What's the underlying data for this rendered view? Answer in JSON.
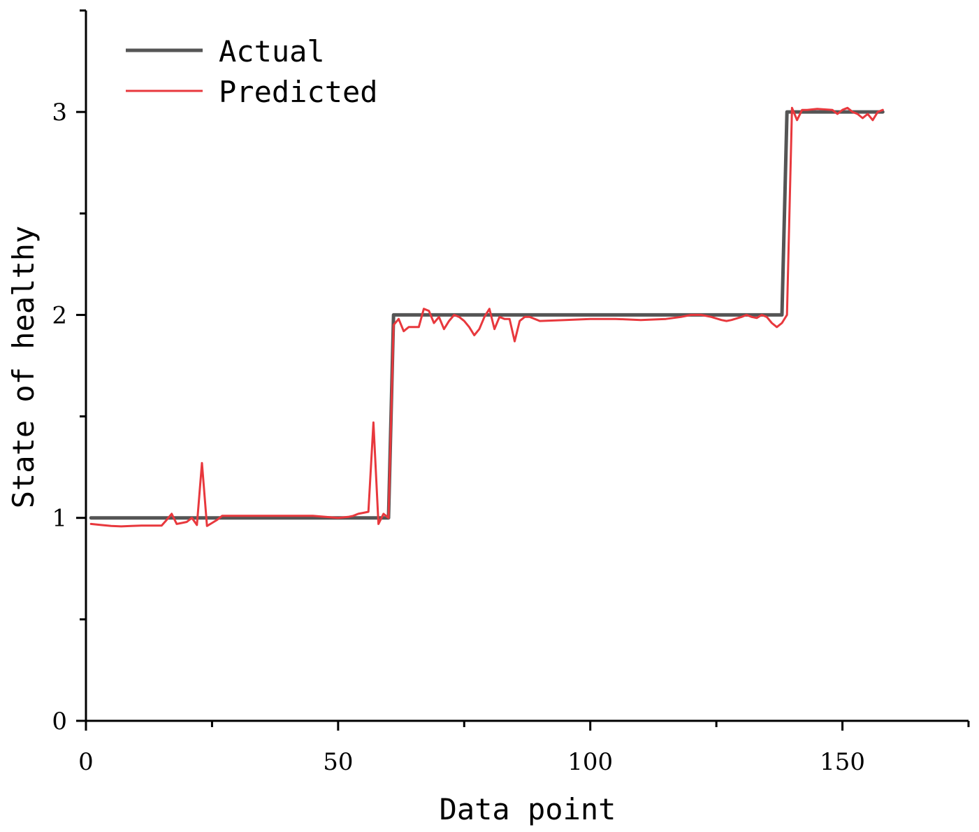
{
  "chart_data": {
    "type": "line",
    "title": "",
    "xlabel": "Data point",
    "ylabel": "State of healthy",
    "xlim": [
      0,
      175
    ],
    "ylim": [
      0,
      3.5
    ],
    "x_ticks": [
      0,
      50,
      100,
      150
    ],
    "x_tick_labels": [
      "0",
      "50",
      "100",
      "150"
    ],
    "y_ticks": [
      0,
      1,
      2,
      3
    ],
    "y_tick_labels": [
      "0",
      "1",
      "2",
      "3"
    ],
    "grid": false,
    "legend_position": "top-left",
    "series": [
      {
        "name": "Actual",
        "color": "#555555",
        "points": [
          [
            1,
            1
          ],
          [
            60,
            1
          ],
          [
            61,
            2
          ],
          [
            138,
            2
          ],
          [
            139,
            3
          ],
          [
            158,
            3
          ]
        ]
      },
      {
        "name": "Predicted",
        "color": "#e8383d",
        "points": [
          [
            1,
            0.97
          ],
          [
            3,
            0.965
          ],
          [
            5,
            0.96
          ],
          [
            7,
            0.958
          ],
          [
            9,
            0.96
          ],
          [
            11,
            0.962
          ],
          [
            13,
            0.962
          ],
          [
            15,
            0.962
          ],
          [
            16,
            0.99
          ],
          [
            17,
            1.02
          ],
          [
            18,
            0.97
          ],
          [
            19,
            0.975
          ],
          [
            20,
            0.98
          ],
          [
            21,
            1.0
          ],
          [
            22,
            0.965
          ],
          [
            23,
            1.27
          ],
          [
            24,
            0.96
          ],
          [
            25,
            0.975
          ],
          [
            26,
            0.99
          ],
          [
            27,
            1.01
          ],
          [
            30,
            1.01
          ],
          [
            35,
            1.01
          ],
          [
            40,
            1.01
          ],
          [
            45,
            1.01
          ],
          [
            50,
            1.0
          ],
          [
            52,
            1.005
          ],
          [
            53,
            1.01
          ],
          [
            54,
            1.02
          ],
          [
            55,
            1.025
          ],
          [
            56,
            1.03
          ],
          [
            57,
            1.47
          ],
          [
            58,
            0.97
          ],
          [
            59,
            1.02
          ],
          [
            60,
            1.0
          ],
          [
            61,
            1.95
          ],
          [
            62,
            1.98
          ],
          [
            63,
            1.92
          ],
          [
            64,
            1.94
          ],
          [
            65,
            1.94
          ],
          [
            66,
            1.94
          ],
          [
            67,
            2.03
          ],
          [
            68,
            2.02
          ],
          [
            69,
            1.96
          ],
          [
            70,
            1.99
          ],
          [
            71,
            1.93
          ],
          [
            72,
            1.97
          ],
          [
            73,
            2.0
          ],
          [
            74,
            1.99
          ],
          [
            75,
            1.97
          ],
          [
            76,
            1.94
          ],
          [
            77,
            1.9
          ],
          [
            78,
            1.93
          ],
          [
            79,
            1.99
          ],
          [
            80,
            2.03
          ],
          [
            81,
            1.93
          ],
          [
            82,
            1.99
          ],
          [
            83,
            1.98
          ],
          [
            84,
            1.98
          ],
          [
            85,
            1.87
          ],
          [
            86,
            1.97
          ],
          [
            87,
            1.99
          ],
          [
            88,
            1.99
          ],
          [
            90,
            1.97
          ],
          [
            95,
            1.975
          ],
          [
            100,
            1.98
          ],
          [
            105,
            1.98
          ],
          [
            110,
            1.975
          ],
          [
            115,
            1.98
          ],
          [
            118,
            1.99
          ],
          [
            120,
            2.0
          ],
          [
            122,
            2.0
          ],
          [
            124,
            1.99
          ],
          [
            126,
            1.975
          ],
          [
            127,
            1.97
          ],
          [
            128,
            1.975
          ],
          [
            130,
            1.99
          ],
          [
            131,
            2.0
          ],
          [
            132,
            1.99
          ],
          [
            133,
            1.985
          ],
          [
            134,
            2.0
          ],
          [
            135,
            1.99
          ],
          [
            136,
            1.96
          ],
          [
            137,
            1.94
          ],
          [
            138,
            1.96
          ],
          [
            139,
            2.0
          ],
          [
            140,
            3.02
          ],
          [
            141,
            2.96
          ],
          [
            142,
            3.01
          ],
          [
            143,
            3.01
          ],
          [
            145,
            3.015
          ],
          [
            148,
            3.01
          ],
          [
            149,
            2.99
          ],
          [
            150,
            3.01
          ],
          [
            151,
            3.02
          ],
          [
            152,
            3.0
          ],
          [
            153,
            2.99
          ],
          [
            154,
            2.97
          ],
          [
            155,
            2.99
          ],
          [
            156,
            2.96
          ],
          [
            157,
            3.0
          ],
          [
            158,
            3.01
          ]
        ]
      }
    ]
  }
}
